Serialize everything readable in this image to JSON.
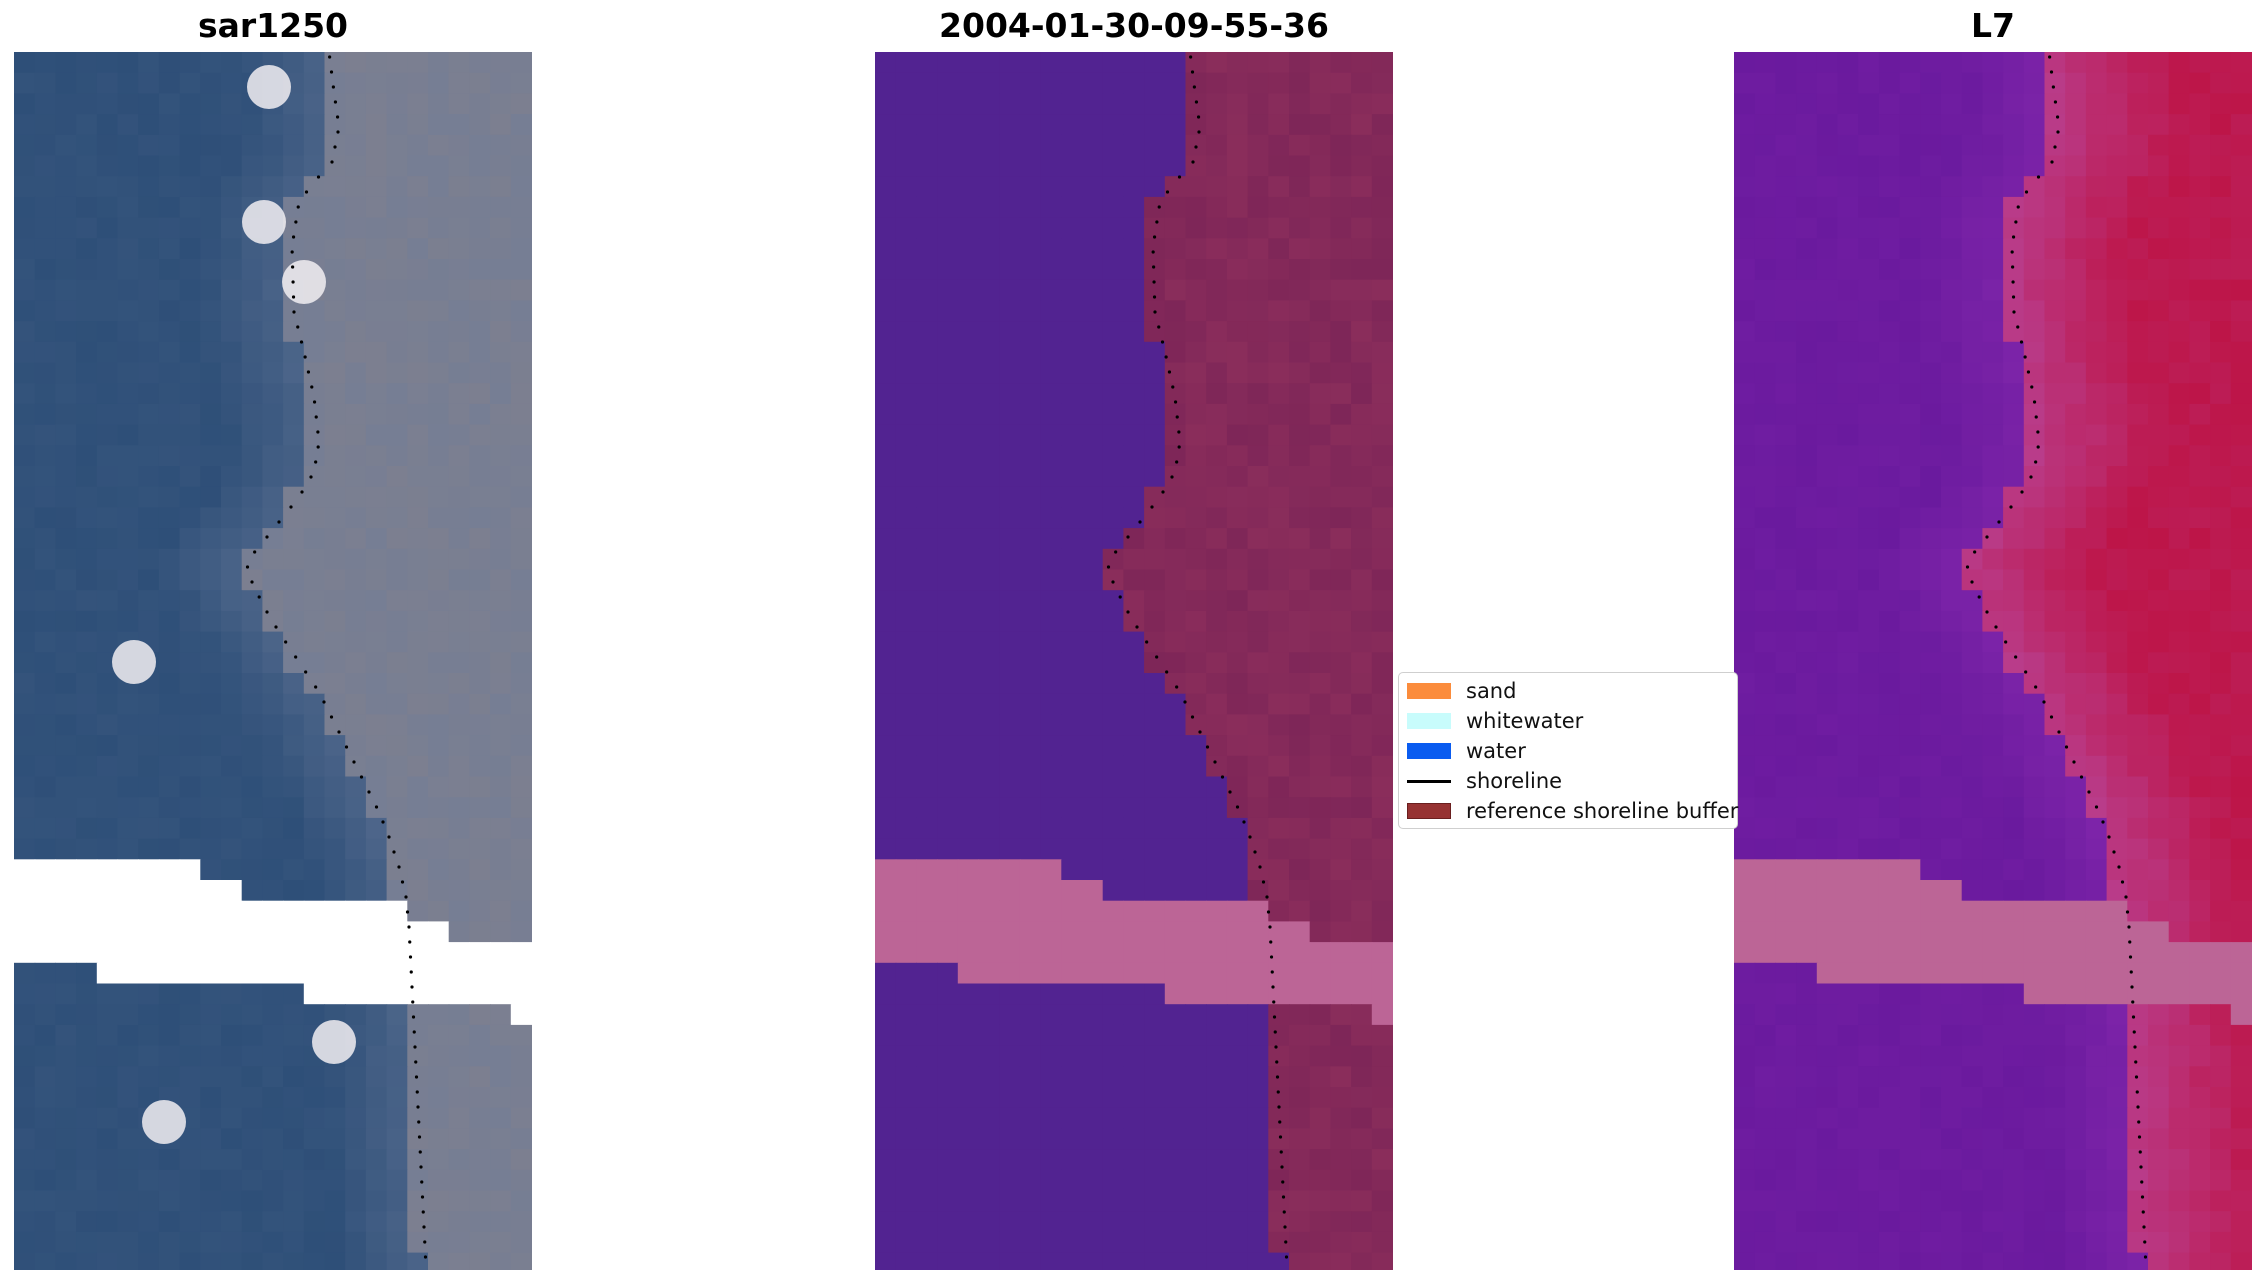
{
  "panels": [
    {
      "title": "sar1250"
    },
    {
      "title": "2004-01-30-09-55-36"
    },
    {
      "title": "L7"
    }
  ],
  "legend": {
    "items": [
      {
        "label": "sand",
        "color": "#fb8c3c",
        "kind": "patch"
      },
      {
        "label": "whitewater",
        "color": "#c8fcfc",
        "kind": "patch"
      },
      {
        "label": "water",
        "color": "#0a5cf0",
        "kind": "patch"
      },
      {
        "label": "shoreline",
        "color": "#000000",
        "kind": "line"
      },
      {
        "label": "reference shoreline buffer",
        "color": "#963232",
        "kind": "patch"
      }
    ]
  },
  "colors": {
    "rgb_water": "#2e4f78",
    "rgb_land": "#7c7f90",
    "class_water": "#522391",
    "class_land": "#7e2658",
    "class_nodata": "#bc6596",
    "ndwi_water": "#6a1a9e",
    "ndwi_land": "#bd1548",
    "ndwi_nodata": "#bc6596"
  }
}
